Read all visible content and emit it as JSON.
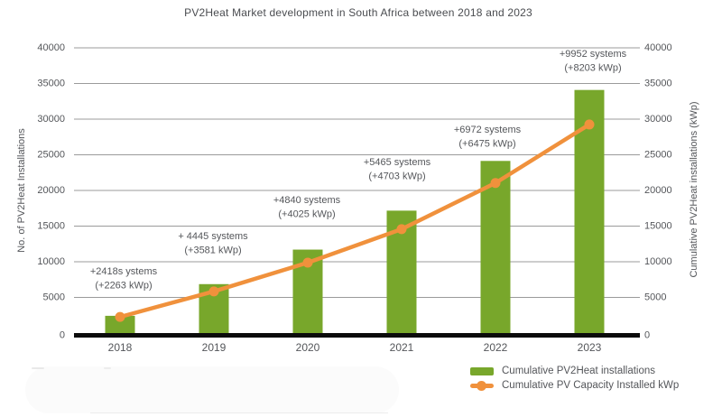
{
  "title": "PV2Heat Market development in South Africa between 2018 and 2023",
  "colors": {
    "bar": "#78A72B",
    "line": "#F0913C",
    "grid": "#9B9B9B",
    "axis": "#0B0B0B",
    "text": "#54565A",
    "title": "#4A4C50",
    "background": "#FFFFFF"
  },
  "chart_data": {
    "type": "bar",
    "title": "PV2Heat Market development in South Africa between 2018 and 2023",
    "categories": [
      "2018",
      "2019",
      "2020",
      "2021",
      "2022",
      "2023"
    ],
    "series": [
      {
        "name": "Cumulative PV2Heat installations",
        "type": "bar",
        "axis": "left",
        "color": "#78A72B",
        "values": [
          2418,
          6863,
          11703,
          17168,
          24140,
          34092
        ]
      },
      {
        "name": "Cumulative PV Capacity Installed kWp",
        "type": "line",
        "axis": "right",
        "color": "#F0913C",
        "values": [
          2263,
          5844,
          9869,
          14572,
          21047,
          29250
        ]
      }
    ],
    "increments": {
      "systems": [
        2418,
        4445,
        4840,
        5465,
        6972,
        9952
      ],
      "kwp": [
        2263,
        3581,
        4025,
        4703,
        6475,
        8203
      ]
    },
    "annotations": [
      {
        "category": "2018",
        "line1": "+2418s ystems",
        "line2": "(+2263 kWp)"
      },
      {
        "category": "2019",
        "line1": "+ 4445 systems",
        "line2": "(+3581 kWp)"
      },
      {
        "category": "2020",
        "line1": "+4840 systems",
        "line2": "(+4025 kWp)"
      },
      {
        "category": "2021",
        "line1": "+5465 systems",
        "line2": "(+4703 kWp)"
      },
      {
        "category": "2022",
        "line1": "+6972 systems",
        "line2": "(+6475 kWp)"
      },
      {
        "category": "2023",
        "line1": "+9952 systems",
        "line2": "(+8203 kWp)"
      }
    ],
    "xlabel": "",
    "ylabel_left": "No. of PV2Heat Installations",
    "ylabel_right": "Cumulative PV2Heat installations (kWp)",
    "yticks": [
      0,
      5000,
      10000,
      15000,
      20000,
      25000,
      30000,
      35000,
      40000
    ],
    "ylim": [
      0,
      40000
    ],
    "grid": true,
    "legend_position": "bottom-right"
  },
  "legend": {
    "items": [
      {
        "label": "Cumulative PV2Heat installations",
        "marker": "bar-swatch"
      },
      {
        "label": "Cumulative PV Capacity Installed kWp",
        "marker": "line-dot-swatch"
      }
    ]
  }
}
